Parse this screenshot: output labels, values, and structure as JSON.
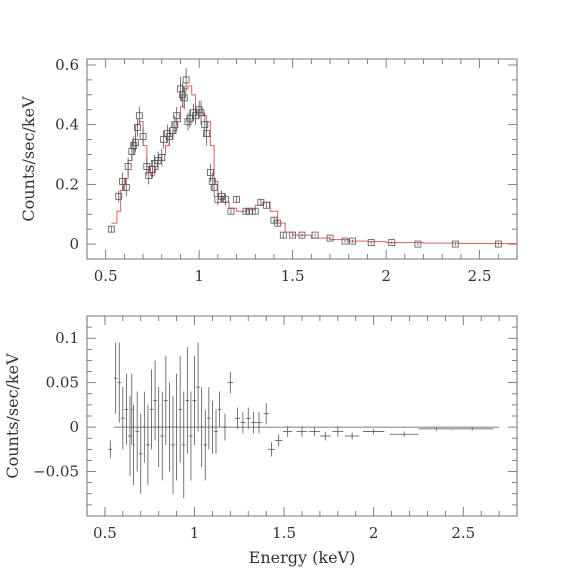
{
  "chart_data": [
    {
      "type": "scatter",
      "xlabel": "",
      "ylabel": "Counts/sec/keV",
      "xlim": [
        0.4,
        2.7
      ],
      "ylim": [
        -0.05,
        0.62
      ],
      "xticks": [
        0.5,
        1,
        1.5,
        2,
        2.5
      ],
      "xtick_labels": [
        "0.5",
        "1",
        "1.5",
        "2",
        "2.5"
      ],
      "yticks": [
        0,
        0.2,
        0.4,
        0.6
      ],
      "ytick_labels": [
        "0",
        "0.2",
        "0.4",
        "0.6"
      ],
      "series": [
        {
          "kind": "data",
          "marker": "square",
          "x": [
            0.53,
            0.57,
            0.59,
            0.61,
            0.62,
            0.64,
            0.65,
            0.66,
            0.67,
            0.68,
            0.7,
            0.72,
            0.73,
            0.75,
            0.76,
            0.78,
            0.8,
            0.81,
            0.83,
            0.84,
            0.86,
            0.87,
            0.88,
            0.9,
            0.91,
            0.92,
            0.93,
            0.94,
            0.95,
            0.97,
            0.98,
            1.0,
            1.01,
            1.03,
            1.04,
            1.06,
            1.07,
            1.08,
            1.1,
            1.12,
            1.14,
            1.17,
            1.2,
            1.25,
            1.27,
            1.3,
            1.33,
            1.36,
            1.4,
            1.42,
            1.45,
            1.5,
            1.55,
            1.62,
            1.7,
            1.78,
            1.82,
            1.92,
            2.03,
            2.17,
            2.37,
            2.6
          ],
          "y": [
            0.05,
            0.16,
            0.21,
            0.19,
            0.26,
            0.31,
            0.33,
            0.34,
            0.39,
            0.43,
            0.36,
            0.26,
            0.23,
            0.25,
            0.27,
            0.28,
            0.29,
            0.35,
            0.37,
            0.36,
            0.38,
            0.4,
            0.43,
            0.52,
            0.5,
            0.49,
            0.55,
            0.41,
            0.42,
            0.44,
            0.43,
            0.45,
            0.44,
            0.4,
            0.37,
            0.24,
            0.21,
            0.19,
            0.15,
            0.16,
            0.15,
            0.11,
            0.15,
            0.11,
            0.11,
            0.11,
            0.14,
            0.13,
            0.08,
            0.07,
            0.03,
            0.03,
            0.03,
            0.03,
            0.02,
            0.01,
            0.01,
            0.005,
            0.005,
            0.0,
            0.0,
            0.0
          ],
          "yerr": [
            0.01,
            0.02,
            0.03,
            0.03,
            0.03,
            0.03,
            0.03,
            0.03,
            0.03,
            0.03,
            0.03,
            0.03,
            0.03,
            0.03,
            0.03,
            0.03,
            0.03,
            0.03,
            0.03,
            0.03,
            0.03,
            0.03,
            0.03,
            0.04,
            0.04,
            0.04,
            0.04,
            0.03,
            0.03,
            0.03,
            0.03,
            0.03,
            0.04,
            0.04,
            0.04,
            0.03,
            0.03,
            0.03,
            0.02,
            0.02,
            0.02,
            0.01,
            0.01,
            0.01,
            0.01,
            0.01,
            0.01,
            0.01,
            0.01,
            0.01,
            0.01,
            0.005,
            0.005,
            0.005,
            0.005,
            0.005,
            0.005,
            0.005,
            0.005,
            0.005,
            0.005,
            0.005
          ]
        },
        {
          "kind": "model",
          "color": "#e06060",
          "x": [
            0.53,
            0.56,
            0.58,
            0.6,
            0.62,
            0.64,
            0.66,
            0.68,
            0.7,
            0.72,
            0.74,
            0.76,
            0.78,
            0.8,
            0.82,
            0.84,
            0.86,
            0.88,
            0.9,
            0.92,
            0.94,
            0.96,
            0.98,
            1.0,
            1.02,
            1.04,
            1.06,
            1.08,
            1.1,
            1.13,
            1.16,
            1.2,
            1.25,
            1.3,
            1.34,
            1.38,
            1.42,
            1.46,
            1.5,
            1.6,
            1.7,
            1.8,
            1.9,
            2.0,
            2.2,
            2.4,
            2.7
          ],
          "y": [
            0.07,
            0.11,
            0.18,
            0.22,
            0.28,
            0.34,
            0.4,
            0.41,
            0.33,
            0.26,
            0.23,
            0.25,
            0.28,
            0.3,
            0.33,
            0.36,
            0.38,
            0.41,
            0.46,
            0.52,
            0.53,
            0.5,
            0.45,
            0.44,
            0.43,
            0.41,
            0.33,
            0.21,
            0.16,
            0.14,
            0.12,
            0.11,
            0.115,
            0.13,
            0.14,
            0.11,
            0.07,
            0.04,
            0.03,
            0.02,
            0.015,
            0.01,
            0.008,
            0.005,
            0.003,
            0.002,
            0.001
          ]
        }
      ]
    },
    {
      "type": "scatter",
      "xlabel": "Energy (keV)",
      "ylabel": "Counts/sec/keV",
      "xlim": [
        0.4,
        2.8
      ],
      "ylim": [
        -0.1,
        0.125
      ],
      "xticks": [
        0.5,
        1,
        1.5,
        2,
        2.5
      ],
      "xtick_labels": [
        "0.5",
        "1",
        "1.5",
        "2",
        "2.5"
      ],
      "yticks": [
        -0.05,
        0,
        0.05,
        0.1
      ],
      "ytick_labels": [
        "−0.05",
        "0",
        "0.05",
        "0.1"
      ],
      "series": [
        {
          "kind": "residuals",
          "marker": "cross",
          "x": [
            0.53,
            0.56,
            0.58,
            0.6,
            0.62,
            0.64,
            0.65,
            0.66,
            0.68,
            0.7,
            0.72,
            0.74,
            0.76,
            0.78,
            0.8,
            0.82,
            0.84,
            0.86,
            0.88,
            0.9,
            0.92,
            0.94,
            0.96,
            0.98,
            1.0,
            1.02,
            1.04,
            1.06,
            1.08,
            1.1,
            1.12,
            1.14,
            1.17,
            1.2,
            1.24,
            1.27,
            1.3,
            1.33,
            1.36,
            1.4,
            1.43,
            1.47,
            1.52,
            1.6,
            1.67,
            1.73,
            1.8,
            1.88,
            2.0,
            2.17,
            2.35,
            2.55
          ],
          "y": [
            -0.025,
            0.055,
            0.05,
            0.01,
            0.02,
            -0.01,
            0.02,
            -0.02,
            -0.005,
            -0.03,
            0.0,
            -0.02,
            0.02,
            0.03,
            0.0,
            -0.01,
            0.03,
            0.0,
            -0.02,
            0.0,
            0.02,
            -0.02,
            0.03,
            -0.01,
            0.03,
            0.045,
            0.0,
            -0.02,
            0.01,
            0.0,
            -0.005,
            0.02,
            0.0,
            0.05,
            0.01,
            0.005,
            0.01,
            0.005,
            0.005,
            0.015,
            -0.025,
            -0.015,
            -0.005,
            -0.005,
            -0.005,
            -0.01,
            -0.005,
            -0.01,
            -0.005,
            -0.008,
            -0.002,
            -0.002
          ],
          "yerr": [
            0.01,
            0.04,
            0.045,
            0.035,
            0.04,
            0.045,
            0.04,
            0.045,
            0.045,
            0.045,
            0.04,
            0.045,
            0.045,
            0.045,
            0.045,
            0.05,
            0.05,
            0.05,
            0.055,
            0.06,
            0.06,
            0.06,
            0.06,
            0.05,
            0.05,
            0.05,
            0.045,
            0.04,
            0.035,
            0.03,
            0.025,
            0.02,
            0.015,
            0.012,
            0.012,
            0.012,
            0.012,
            0.012,
            0.012,
            0.012,
            0.008,
            0.007,
            0.006,
            0.006,
            0.005,
            0.005,
            0.006,
            0.004,
            0.003,
            0.003,
            0.002,
            0.002
          ],
          "xerr": [
            0.01,
            0.01,
            0.01,
            0.01,
            0.01,
            0.01,
            0.005,
            0.005,
            0.01,
            0.01,
            0.01,
            0.01,
            0.01,
            0.01,
            0.01,
            0.01,
            0.01,
            0.01,
            0.01,
            0.01,
            0.01,
            0.01,
            0.01,
            0.01,
            0.01,
            0.01,
            0.01,
            0.01,
            0.01,
            0.01,
            0.01,
            0.01,
            0.015,
            0.015,
            0.015,
            0.015,
            0.015,
            0.015,
            0.015,
            0.015,
            0.02,
            0.02,
            0.025,
            0.03,
            0.03,
            0.03,
            0.03,
            0.04,
            0.06,
            0.08,
            0.1,
            0.12
          ]
        }
      ]
    }
  ]
}
